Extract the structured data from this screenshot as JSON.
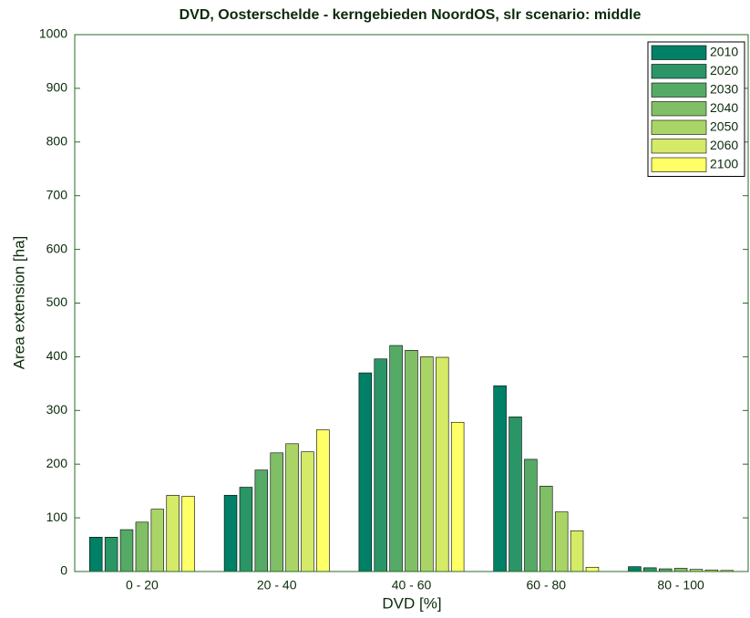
{
  "chart_data": {
    "type": "bar",
    "title": "DVD, Oosterschelde - kerngebieden NoordOS, slr scenario: middle",
    "x_label": "DVD [%]",
    "y_label": "Area extension [ha]",
    "categories": [
      "0  - 20",
      "20 - 40",
      "40 - 60",
      "60 - 80",
      "80 - 100"
    ],
    "series": [
      {
        "name": "2010",
        "color": "#008066",
        "values": [
          64,
          142,
          370,
          346,
          9
        ]
      },
      {
        "name": "2020",
        "color": "#2a9566",
        "values": [
          64,
          157,
          396,
          288,
          7
        ]
      },
      {
        "name": "2030",
        "color": "#55aa66",
        "values": [
          78,
          189,
          421,
          209,
          5
        ]
      },
      {
        "name": "2040",
        "color": "#80bf66",
        "values": [
          92,
          221,
          412,
          159,
          6
        ]
      },
      {
        "name": "2050",
        "color": "#aad566",
        "values": [
          116,
          238,
          400,
          111,
          4
        ]
      },
      {
        "name": "2060",
        "color": "#d5ea66",
        "values": [
          142,
          223,
          399,
          76,
          3
        ]
      },
      {
        "name": "2100",
        "color": "#ffff66",
        "values": [
          140,
          264,
          278,
          8,
          2
        ]
      }
    ],
    "ylim": [
      0,
      1000
    ],
    "yticks": [
      0,
      100,
      200,
      300,
      400,
      500,
      600,
      700,
      800,
      900,
      1000
    ],
    "grid": false,
    "legend": "upper right"
  }
}
